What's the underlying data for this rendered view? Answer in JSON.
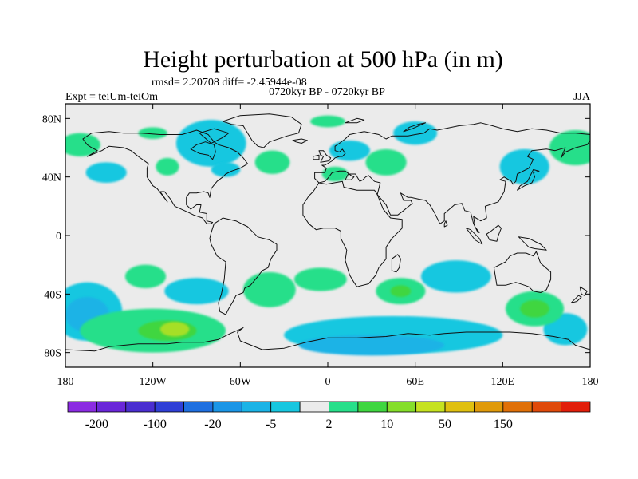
{
  "chart_data": {
    "type": "contour_map",
    "title": "Height perturbation at 500 hPa (in m)",
    "stats_label": "rmsd= 2.20708 diff= -2.45944e-08",
    "left_label": "Expt = teiUm-teiOm",
    "center_label": "0720kyr BP - 0720kyr BP",
    "right_label": "JJA",
    "lon_range": [
      -180,
      180
    ],
    "lat_range": [
      -90,
      90
    ],
    "x_ticks": [
      {
        "value": -180,
        "label": "180"
      },
      {
        "value": -120,
        "label": "120W"
      },
      {
        "value": -60,
        "label": "60W"
      },
      {
        "value": 0,
        "label": "0"
      },
      {
        "value": 60,
        "label": "60E"
      },
      {
        "value": 120,
        "label": "120E"
      },
      {
        "value": 180,
        "label": "180"
      }
    ],
    "y_ticks": [
      {
        "value": 80,
        "label": "80N"
      },
      {
        "value": 40,
        "label": "40N"
      },
      {
        "value": 0,
        "label": "0"
      },
      {
        "value": -40,
        "label": "40S"
      },
      {
        "value": -80,
        "label": "80S"
      }
    ],
    "colorbar": {
      "colors": [
        "#8b2be2",
        "#6a26d9",
        "#4a2ed0",
        "#2f3fd6",
        "#1e6fe0",
        "#1a95e6",
        "#1ab3e6",
        "#17c7e0",
        "#ebebeb",
        "#27df8a",
        "#3fd640",
        "#85de2a",
        "#c6e220",
        "#e0c010",
        "#e09a0a",
        "#e07008",
        "#e04a0a",
        "#e21e0a"
      ],
      "labels": [
        {
          "after_box": 1,
          "text": "-200"
        },
        {
          "after_box": 3,
          "text": "-100"
        },
        {
          "after_box": 5,
          "text": "-20"
        },
        {
          "after_box": 7,
          "text": "-5"
        },
        {
          "after_box": 9,
          "text": "2"
        },
        {
          "after_box": 11,
          "text": "10"
        },
        {
          "after_box": 13,
          "text": "50"
        },
        {
          "after_box": 15,
          "text": "150"
        }
      ]
    },
    "anomaly_regions": [
      {
        "sign": "negative",
        "level": 1,
        "lon": -80,
        "lat": 63,
        "rlon": 24,
        "rlat": 16
      },
      {
        "sign": "negative",
        "level": 1,
        "lon": -70,
        "lat": 45,
        "rlon": 10,
        "rlat": 5
      },
      {
        "sign": "negative",
        "level": 1,
        "lon": -152,
        "lat": 43,
        "rlon": 14,
        "rlat": 7
      },
      {
        "sign": "negative",
        "level": 1,
        "lon": 15,
        "lat": 58,
        "rlon": 14,
        "rlat": 7
      },
      {
        "sign": "negative",
        "level": 1,
        "lon": 60,
        "lat": 70,
        "rlon": 15,
        "rlat": 8
      },
      {
        "sign": "negative",
        "level": 1,
        "lon": 135,
        "lat": 47,
        "rlon": 17,
        "rlat": 12
      },
      {
        "sign": "negative",
        "level": 1,
        "lon": -165,
        "lat": -52,
        "rlon": 24,
        "rlat": 20
      },
      {
        "sign": "negative",
        "level": 2,
        "lon": -165,
        "lat": -54,
        "rlon": 15,
        "rlat": 12
      },
      {
        "sign": "negative",
        "level": 1,
        "lon": -90,
        "lat": -38,
        "rlon": 22,
        "rlat": 9
      },
      {
        "sign": "negative",
        "level": 1,
        "lon": 88,
        "lat": -28,
        "rlon": 24,
        "rlat": 11
      },
      {
        "sign": "negative",
        "level": 1,
        "lon": 45,
        "lat": -68,
        "rlon": 75,
        "rlat": 13
      },
      {
        "sign": "negative",
        "level": 2,
        "lon": 30,
        "lat": -75,
        "rlon": 50,
        "rlat": 7
      },
      {
        "sign": "negative",
        "level": 1,
        "lon": 163,
        "lat": -64,
        "rlon": 15,
        "rlat": 11
      },
      {
        "sign": "positive",
        "level": 1,
        "lon": 0,
        "lat": 78,
        "rlon": 12,
        "rlat": 4
      },
      {
        "sign": "positive",
        "level": 1,
        "lon": 40,
        "lat": 50,
        "rlon": 14,
        "rlat": 9
      },
      {
        "sign": "positive",
        "level": 1,
        "lon": -38,
        "lat": 50,
        "rlon": 12,
        "rlat": 8
      },
      {
        "sign": "positive",
        "level": 1,
        "lon": 5,
        "lat": 42,
        "rlon": 9,
        "rlat": 5
      },
      {
        "sign": "positive",
        "level": 1,
        "lon": 170,
        "lat": 60,
        "rlon": 18,
        "rlat": 12
      },
      {
        "sign": "positive",
        "level": 1,
        "lon": -170,
        "lat": 62,
        "rlon": 14,
        "rlat": 8
      },
      {
        "sign": "positive",
        "level": 1,
        "lon": -110,
        "lat": 47,
        "rlon": 8,
        "rlat": 6
      },
      {
        "sign": "positive",
        "level": 1,
        "lon": -120,
        "lat": -65,
        "rlon": 50,
        "rlat": 15
      },
      {
        "sign": "positive",
        "level": 2,
        "lon": -110,
        "lat": -65,
        "rlon": 20,
        "rlat": 7
      },
      {
        "sign": "positive",
        "level": 3,
        "lon": -105,
        "lat": -64,
        "rlon": 10,
        "rlat": 5
      },
      {
        "sign": "positive",
        "level": 1,
        "lon": -125,
        "lat": -28,
        "rlon": 14,
        "rlat": 8
      },
      {
        "sign": "positive",
        "level": 1,
        "lon": -40,
        "lat": -37,
        "rlon": 18,
        "rlat": 12
      },
      {
        "sign": "positive",
        "level": 1,
        "lon": -5,
        "lat": -30,
        "rlon": 18,
        "rlat": 8
      },
      {
        "sign": "positive",
        "level": 1,
        "lon": 50,
        "lat": -38,
        "rlon": 17,
        "rlat": 9
      },
      {
        "sign": "positive",
        "level": 2,
        "lon": 50,
        "lat": -38,
        "rlon": 7,
        "rlat": 4
      },
      {
        "sign": "positive",
        "level": 1,
        "lon": 142,
        "lat": -50,
        "rlon": 20,
        "rlat": 12
      },
      {
        "sign": "positive",
        "level": 2,
        "lon": 142,
        "lat": -50,
        "rlon": 10,
        "rlat": 6
      },
      {
        "sign": "positive",
        "level": 1,
        "lon": -120,
        "lat": 70,
        "rlon": 10,
        "rlat": 4
      }
    ]
  }
}
